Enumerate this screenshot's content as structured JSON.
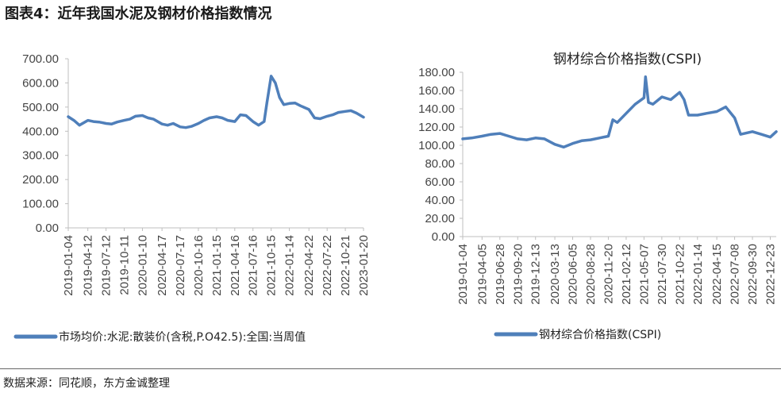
{
  "header": {
    "title": "图表4：近年我国水泥及钢材价格指数情况"
  },
  "footer": {
    "source": "数据来源：同花顺，东方金诚整理"
  },
  "colors": {
    "line": "#4f7fba",
    "axis": "#bfbfbf"
  },
  "chart_data": [
    {
      "type": "line",
      "title": "",
      "legend": "市场均价:水泥:散装价(含税,P.O42.5):全国:当周值",
      "legend_position": "bottom",
      "ylim": [
        0,
        700
      ],
      "yticks": [
        "0.00",
        "100.00",
        "200.00",
        "300.00",
        "400.00",
        "500.00",
        "600.00",
        "700.00"
      ],
      "xticks": [
        "2019-01-04",
        "2019-04-12",
        "2019-07-12",
        "2019-10-11",
        "2020-01-10",
        "2020-04-17",
        "2020-07-17",
        "2020-10-16",
        "2021-01-15",
        "2021-04-16",
        "2021-07-16",
        "2021-10-15",
        "2022-01-14",
        "2022-04-22",
        "2022-07-22",
        "2022-10-21",
        "2023-01-20"
      ],
      "x": [
        "2019-01-04",
        "2019-02-01",
        "2019-03-01",
        "2019-04-12",
        "2019-05-10",
        "2019-06-07",
        "2019-07-12",
        "2019-08-09",
        "2019-09-06",
        "2019-10-11",
        "2019-11-08",
        "2019-12-06",
        "2020-01-10",
        "2020-02-07",
        "2020-03-06",
        "2020-04-17",
        "2020-05-15",
        "2020-06-12",
        "2020-07-17",
        "2020-08-14",
        "2020-09-11",
        "2020-10-16",
        "2020-11-13",
        "2020-12-11",
        "2021-01-15",
        "2021-02-12",
        "2021-03-12",
        "2021-04-16",
        "2021-05-14",
        "2021-06-11",
        "2021-07-16",
        "2021-08-13",
        "2021-09-10",
        "2021-09-24",
        "2021-10-15",
        "2021-11-05",
        "2021-11-26",
        "2021-12-17",
        "2022-01-14",
        "2022-02-11",
        "2022-03-11",
        "2022-04-22",
        "2022-05-20",
        "2022-06-17",
        "2022-07-22",
        "2022-08-19",
        "2022-09-16",
        "2022-10-21",
        "2022-11-18",
        "2022-12-16",
        "2023-01-20"
      ],
      "series": [
        {
          "name": "市场均价:水泥:散装价(含税,P.O42.5):全国:当周值",
          "values": [
            460,
            445,
            425,
            445,
            440,
            438,
            432,
            430,
            438,
            445,
            450,
            462,
            465,
            455,
            450,
            430,
            425,
            432,
            418,
            415,
            420,
            432,
            445,
            455,
            460,
            455,
            445,
            440,
            468,
            465,
            440,
            425,
            440,
            520,
            628,
            600,
            540,
            510,
            515,
            517,
            505,
            490,
            455,
            452,
            462,
            468,
            478,
            482,
            485,
            475,
            458
          ]
        }
      ]
    },
    {
      "type": "line",
      "title": "钢材综合价格指数(CSPI)",
      "legend": "钢材综合价格指数(CSPI)",
      "legend_position": "bottom",
      "ylim": [
        0,
        180
      ],
      "yticks": [
        "0.00",
        "20.00",
        "40.00",
        "60.00",
        "80.00",
        "100.00",
        "120.00",
        "140.00",
        "160.00",
        "180.00"
      ],
      "xticks": [
        "2019-01-04",
        "2019-04-05",
        "2019-06-28",
        "2019-09-20",
        "2019-12-13",
        "2020-03-13",
        "2020-06-05",
        "2020-08-28",
        "2020-11-20",
        "2021-02-12",
        "2021-05-07",
        "2021-07-30",
        "2021-10-22",
        "2022-01-14",
        "2022-04-15",
        "2022-07-08",
        "2022-09-30",
        "2022-12-23"
      ],
      "x": [
        "2019-01-04",
        "2019-02-15",
        "2019-04-05",
        "2019-05-17",
        "2019-06-28",
        "2019-08-09",
        "2019-09-20",
        "2019-11-01",
        "2019-12-13",
        "2020-01-24",
        "2020-03-13",
        "2020-04-24",
        "2020-06-05",
        "2020-07-17",
        "2020-08-28",
        "2020-10-09",
        "2020-11-20",
        "2020-12-11",
        "2021-01-01",
        "2021-02-12",
        "2021-03-26",
        "2021-05-07",
        "2021-05-14",
        "2021-05-28",
        "2021-06-18",
        "2021-07-30",
        "2021-09-10",
        "2021-10-22",
        "2021-11-12",
        "2021-12-03",
        "2022-01-14",
        "2022-02-25",
        "2022-04-15",
        "2022-05-27",
        "2022-07-08",
        "2022-08-05",
        "2022-09-30",
        "2022-11-11",
        "2022-12-23",
        "2023-01-20"
      ],
      "series": [
        {
          "name": "钢材综合价格指数(CSPI)",
          "values": [
            107,
            108,
            110,
            112,
            113,
            110,
            107,
            106,
            108,
            107,
            101,
            98,
            102,
            105,
            106,
            108,
            110,
            128,
            125,
            135,
            145,
            152,
            175,
            147,
            145,
            153,
            150,
            158,
            150,
            133,
            133,
            135,
            137,
            142,
            130,
            112,
            115,
            112,
            109,
            115
          ]
        }
      ]
    }
  ]
}
